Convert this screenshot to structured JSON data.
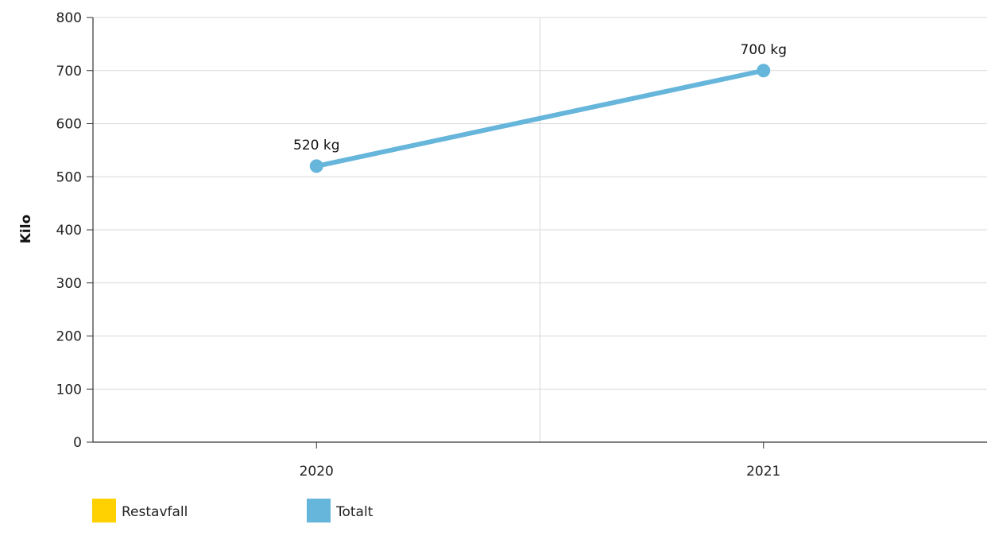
{
  "chart_data": {
    "type": "line",
    "title": "",
    "xlabel": "",
    "ylabel": "Kilo",
    "categories": [
      "2020",
      "2021"
    ],
    "ylim": [
      0,
      800
    ],
    "yticks": [
      0,
      100,
      200,
      300,
      400,
      500,
      600,
      700,
      800
    ],
    "grid": true,
    "legend_position": "bottom-left",
    "series": [
      {
        "name": "Restavfall",
        "color": "#FFD100",
        "values": [
          null,
          null
        ]
      },
      {
        "name": "Totalt",
        "color": "#66B5DB",
        "values": [
          520,
          700
        ],
        "labels": [
          "520 kg",
          "700 kg"
        ]
      }
    ]
  }
}
